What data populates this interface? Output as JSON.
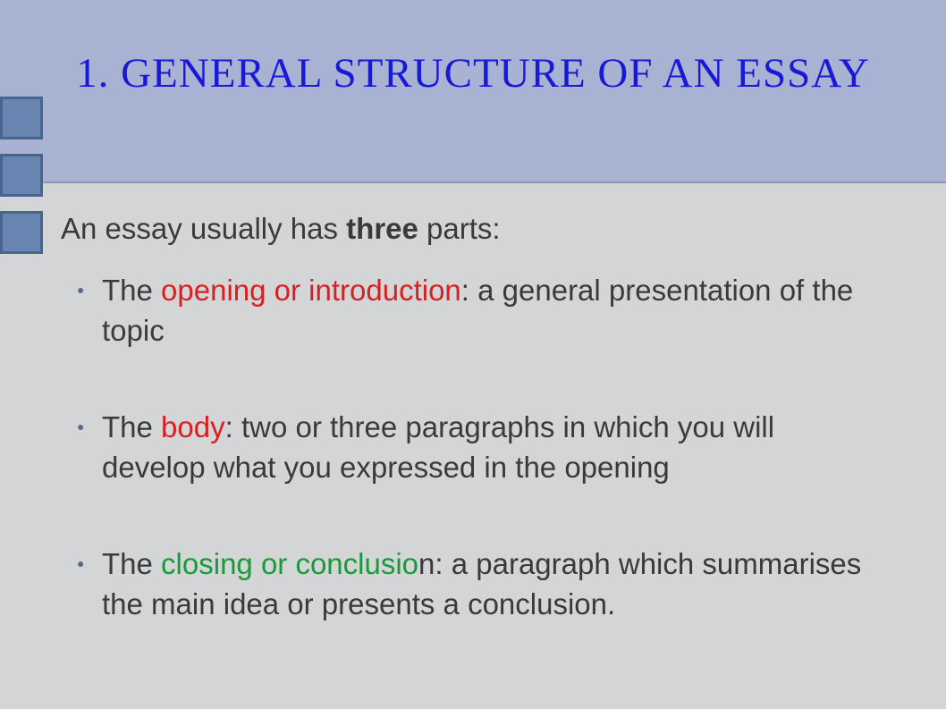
{
  "slide": {
    "title": "1. GENERAL STRUCTURE OF AN ESSAY",
    "intro_prefix": "An essay usually has ",
    "intro_bold": "three",
    "intro_suffix": " parts:",
    "items": [
      {
        "prefix": "The ",
        "highlight": "opening or introduction",
        "highlight_color": "red",
        "colon_extra": "",
        "rest": ": a general presentation of the topic"
      },
      {
        "prefix": "The ",
        "highlight": "body",
        "highlight_color": "red",
        "colon_extra": "",
        "rest": ":  two or three paragraphs in which you will develop what you expressed in the opening"
      },
      {
        "prefix": "The ",
        "highlight": "closing or conclusio",
        "highlight_color": "green",
        "colon_extra": "n",
        "rest": ": a paragraph which summarises the main idea or presents a conclusion."
      }
    ]
  },
  "styling": {
    "header_bg": "#a8b3d4",
    "body_bg": "#d3d5d7",
    "title_color": "#1818d8",
    "text_color": "#3a3a3a",
    "highlight_red": "#d82020",
    "highlight_green": "#1a9a3a",
    "tab_bg": "#6884b0",
    "tab_border": "#4a6490",
    "title_font": "Comic Sans MS",
    "title_fontsize": 47,
    "body_fontsize": 33,
    "bullet_color": "#5a6a85"
  }
}
